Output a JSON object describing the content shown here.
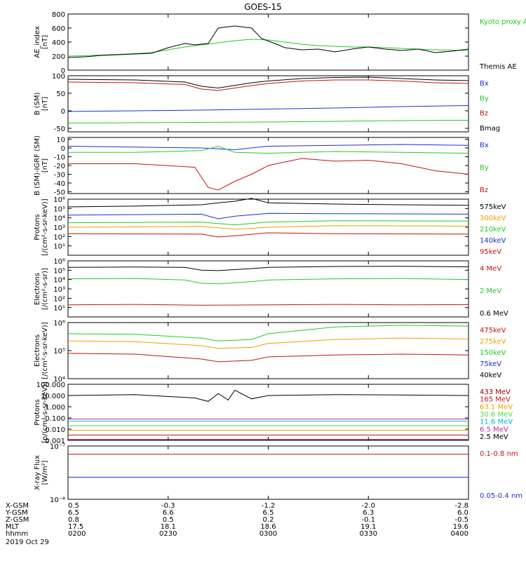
{
  "title": "GOES-15",
  "date": "2019 Oct 29",
  "colors": {
    "black": "#000000",
    "green": "#22cc22",
    "blue": "#1f2fd0",
    "red": "#c01515",
    "orange": "#f0a000",
    "cyan": "#00b8e8",
    "lime": "#44dd44",
    "darkred": "#8b0000",
    "magenta": "#b03090"
  },
  "chart_data": [
    {
      "type": "line",
      "id": "ae",
      "ylabel": "AE_index\n[nT]",
      "ylim": [
        0,
        800
      ],
      "yticks": [
        "0",
        "200",
        "400",
        "600",
        "800"
      ],
      "ytickvals": [
        0,
        200,
        400,
        600,
        800
      ],
      "series": [
        {
          "name": "Kyoto proxy AE",
          "color": "green",
          "x": [
            0,
            5,
            10,
            15,
            20,
            25,
            30,
            35,
            40,
            45,
            50,
            55,
            60,
            65,
            70,
            75,
            80,
            85,
            90,
            95,
            100,
            105,
            110,
            115,
            120
          ],
          "y": [
            200,
            205,
            215,
            225,
            235,
            250,
            290,
            330,
            360,
            390,
            420,
            440,
            430,
            400,
            370,
            350,
            340,
            330,
            330,
            320,
            310,
            300,
            290,
            285,
            280
          ]
        },
        {
          "name": "Themis AE",
          "color": "black",
          "x": [
            0,
            5,
            10,
            15,
            20,
            25,
            30,
            35,
            38,
            42,
            45,
            50,
            55,
            58,
            62,
            65,
            70,
            75,
            80,
            85,
            90,
            95,
            100,
            105,
            110,
            115,
            120
          ],
          "y": [
            180,
            190,
            210,
            220,
            230,
            240,
            320,
            380,
            360,
            380,
            600,
            630,
            600,
            450,
            380,
            320,
            290,
            300,
            260,
            300,
            330,
            300,
            280,
            300,
            250,
            270,
            300
          ]
        }
      ]
    },
    {
      "type": "line",
      "id": "bsm",
      "ylabel": "B (SM)\n[nT]",
      "ylim": [
        -60,
        100
      ],
      "yticks": [
        "-50",
        "0",
        "50",
        "100"
      ],
      "ytickvals": [
        -50,
        0,
        50,
        100
      ],
      "series": [
        {
          "name": "Bx",
          "color": "blue",
          "x": [
            0,
            20,
            40,
            60,
            80,
            100,
            120
          ],
          "y": [
            -2,
            0,
            2,
            5,
            8,
            12,
            15
          ]
        },
        {
          "name": "By",
          "color": "green",
          "x": [
            0,
            20,
            40,
            60,
            80,
            100,
            120
          ],
          "y": [
            -35,
            -34,
            -33,
            -32,
            -30,
            -28,
            -27
          ]
        },
        {
          "name": "Bz",
          "color": "red",
          "x": [
            0,
            20,
            35,
            40,
            45,
            55,
            60,
            70,
            80,
            90,
            100,
            110,
            120
          ],
          "y": [
            82,
            80,
            75,
            62,
            58,
            72,
            78,
            85,
            88,
            88,
            85,
            80,
            78
          ]
        },
        {
          "name": "Bmag",
          "color": "black",
          "x": [
            0,
            20,
            35,
            40,
            45,
            55,
            60,
            70,
            80,
            90,
            100,
            110,
            120
          ],
          "y": [
            90,
            88,
            82,
            70,
            65,
            80,
            85,
            92,
            95,
            96,
            92,
            88,
            86
          ]
        }
      ]
    },
    {
      "type": "line",
      "id": "bigrf",
      "ylabel": "B (SM)-IGRF (SM)\n[nT]",
      "ylim": [
        -52,
        12
      ],
      "yticks": [
        "-50",
        "-40",
        "-30",
        "-20",
        "-10",
        "0",
        "10"
      ],
      "ytickvals": [
        -50,
        -40,
        -30,
        -20,
        -10,
        0,
        10
      ],
      "series": [
        {
          "name": "Bx",
          "color": "blue",
          "x": [
            0,
            20,
            40,
            50,
            60,
            80,
            100,
            120
          ],
          "y": [
            2,
            1,
            0,
            -2,
            2,
            3,
            4,
            3
          ]
        },
        {
          "name": "By",
          "color": "green",
          "x": [
            0,
            20,
            40,
            45,
            50,
            60,
            80,
            100,
            120
          ],
          "y": [
            -5,
            -5,
            -3,
            2,
            -5,
            -6,
            -4,
            -5,
            -6
          ]
        },
        {
          "name": "Bz",
          "color": "red",
          "x": [
            0,
            20,
            38,
            42,
            45,
            50,
            55,
            60,
            70,
            80,
            90,
            100,
            110,
            120
          ],
          "y": [
            -18,
            -18,
            -22,
            -45,
            -48,
            -38,
            -30,
            -20,
            -12,
            -15,
            -14,
            -18,
            -26,
            -30
          ]
        }
      ]
    },
    {
      "type": "line",
      "id": "protons_low",
      "log": true,
      "ylabel": "Protons\n[/(cm²-s-sr-keV)]",
      "ylim": [
        1,
        1000000
      ],
      "yticks": [
        "10¹",
        "10²",
        "10³",
        "10⁴",
        "10⁵",
        "10⁶"
      ],
      "ytickvals": [
        10,
        100,
        1000,
        10000,
        100000,
        1000000
      ],
      "series": [
        {
          "name": "575keV",
          "color": "black",
          "x": [
            0,
            20,
            40,
            45,
            50,
            55,
            60,
            80,
            100,
            120
          ],
          "y": [
            150000,
            180000,
            250000,
            400000,
            600000,
            1200000,
            400000,
            300000,
            250000,
            220000
          ]
        },
        {
          "name": "300keV",
          "color": "orange",
          "x": [
            0,
            40,
            45,
            50,
            60,
            80,
            120
          ],
          "y": [
            1000,
            1200,
            900,
            600,
            1000,
            1500,
            1300
          ]
        },
        {
          "name": "210keV",
          "color": "green",
          "x": [
            0,
            40,
            45,
            50,
            60,
            80,
            120
          ],
          "y": [
            3000,
            3500,
            2500,
            1800,
            3500,
            5000,
            4500
          ]
        },
        {
          "name": "140keV",
          "color": "blue",
          "x": [
            0,
            40,
            45,
            50,
            60,
            80,
            120
          ],
          "y": [
            20000,
            25000,
            8000,
            15000,
            30000,
            28000,
            25000
          ]
        },
        {
          "name": "95keV",
          "color": "red",
          "x": [
            0,
            40,
            45,
            50,
            60,
            80,
            120
          ],
          "y": [
            200,
            180,
            90,
            120,
            250,
            200,
            180
          ]
        }
      ]
    },
    {
      "type": "line",
      "id": "electrons_mev",
      "log": true,
      "ylabel": "Electrons\n[/(cm²-s-sr)]",
      "ylim": [
        1,
        1000000
      ],
      "yticks": [
        "10¹",
        "10²",
        "10³",
        "10⁴",
        "10⁵",
        "10⁶"
      ],
      "ytickvals": [
        10,
        100,
        1000,
        10000,
        100000,
        1000000
      ],
      "series": [
        {
          "name": "4 MeV",
          "color": "red",
          "x": [
            0,
            20,
            40,
            60,
            80,
            100,
            120
          ],
          "y": [
            20,
            22,
            18,
            20,
            22,
            20,
            21
          ]
        },
        {
          "name": "2 MeV",
          "color": "green",
          "x": [
            0,
            20,
            35,
            40,
            45,
            55,
            60,
            80,
            100,
            120
          ],
          "y": [
            12000,
            13000,
            9000,
            4000,
            3500,
            6000,
            9000,
            12000,
            13000,
            10000
          ]
        },
        {
          "name": "0.6 MeV",
          "color": "black",
          "x": [
            0,
            20,
            35,
            40,
            45,
            55,
            60,
            80,
            100,
            120
          ],
          "y": [
            200000,
            220000,
            200000,
            100000,
            90000,
            150000,
            200000,
            250000,
            260000,
            230000
          ]
        }
      ]
    },
    {
      "type": "line",
      "id": "electrons_kev",
      "log": true,
      "ylabel": "Electrons\n[/(cm²-s-sr-keV)]",
      "ylim": [
        10000,
        1000000
      ],
      "yticks": [
        "10⁴",
        "10⁵",
        "10⁶"
      ],
      "ytickvals": [
        10000,
        100000,
        1000000
      ],
      "series": [
        {
          "name": "475keV",
          "color": "red",
          "x": [
            0,
            20,
            40,
            45,
            55,
            60,
            80,
            100,
            120
          ],
          "y": [
            80000,
            75000,
            50000,
            40000,
            45000,
            60000,
            70000,
            75000,
            70000
          ]
        },
        {
          "name": "275keV",
          "color": "orange",
          "x": [
            0,
            20,
            40,
            45,
            55,
            60,
            80,
            100,
            120
          ],
          "y": [
            220000,
            210000,
            150000,
            120000,
            130000,
            180000,
            250000,
            280000,
            260000
          ]
        },
        {
          "name": "150keV",
          "color": "green",
          "x": [
            0,
            20,
            40,
            45,
            55,
            60,
            80,
            100,
            120
          ],
          "y": [
            400000,
            380000,
            280000,
            220000,
            250000,
            400000,
            700000,
            800000,
            750000
          ]
        },
        {
          "name": "75keV",
          "color": "blue",
          "x": [
            0,
            120
          ],
          "y": [
            1000000,
            1000000
          ]
        },
        {
          "name": "40keV",
          "color": "black",
          "x": [
            0,
            120
          ],
          "y": [
            1000000,
            1000000
          ]
        }
      ]
    },
    {
      "type": "line",
      "id": "protons_mev",
      "log": true,
      "ylabel": "Protons\n[p/(cm²-s-sr-keV)]",
      "ylim": [
        0.001,
        100
      ],
      "yticks": [
        "0.001",
        "0.010",
        "0.100",
        "1.000",
        "10.000",
        "100.000"
      ],
      "ytickvals": [
        0.001,
        0.01,
        0.1,
        1,
        10,
        100
      ],
      "series": [
        {
          "name": "433 MeV",
          "color": "darkred",
          "x": [
            0,
            120
          ],
          "y": [
            0.0012,
            0.0012
          ]
        },
        {
          "name": "165 MeV",
          "color": "red",
          "x": [
            0,
            120
          ],
          "y": [
            0.003,
            0.003
          ]
        },
        {
          "name": "63.1 MeV",
          "color": "orange",
          "x": [
            0,
            120
          ],
          "y": [
            0.008,
            0.008
          ]
        },
        {
          "name": "30.6 MeV",
          "color": "lime",
          "x": [
            0,
            120
          ],
          "y": [
            0.02,
            0.02
          ]
        },
        {
          "name": "11.6 MeV",
          "color": "cyan",
          "x": [
            0,
            120
          ],
          "y": [
            0.05,
            0.05
          ]
        },
        {
          "name": "6.5 MeV",
          "color": "magenta",
          "x": [
            0,
            120
          ],
          "y": [
            0.08,
            0.08
          ]
        },
        {
          "name": "2.5 MeV",
          "color": "black",
          "x": [
            0,
            20,
            38,
            42,
            45,
            48,
            50,
            55,
            60,
            80,
            100,
            120
          ],
          "y": [
            10,
            12,
            6,
            3,
            15,
            4,
            30,
            5,
            10,
            12,
            11,
            10
          ]
        }
      ]
    },
    {
      "type": "line",
      "id": "xray",
      "log": true,
      "ylabel": "X-ray Flux\n[W/m²]",
      "ylim": [
        1e-08,
        1e-07
      ],
      "yticks": [
        "10⁻⁸",
        "10⁻⁷"
      ],
      "ytickvals": [
        1e-08,
        1e-07
      ],
      "series": [
        {
          "name": "0.1-0.8 nm",
          "color": "red",
          "x": [
            0,
            120
          ],
          "y": [
            7e-08,
            7e-08
          ]
        },
        {
          "name": "0.05-0.4 nm",
          "color": "blue",
          "x": [
            0,
            120
          ],
          "y": [
            2.6e-08,
            2.6e-08
          ]
        }
      ]
    }
  ],
  "xaxis": {
    "row_labels": [
      "X-GSM",
      "Y-GSM",
      "Z-GSM",
      "MLT",
      "hhmm"
    ],
    "columns": [
      [
        "0.5",
        "6.5",
        "0.8",
        "17.5",
        "0200"
      ],
      [
        "-0.3",
        "6.6",
        "0.5",
        "18.1",
        "0230"
      ],
      [
        "-1.2",
        "6.5",
        "0.2",
        "18.6",
        "0300"
      ],
      [
        "-2.0",
        "6.3",
        "-0.1",
        "19.1",
        "0330"
      ],
      [
        "-2.8",
        "6.0",
        "-0.5",
        "19.6",
        "0400"
      ]
    ]
  }
}
